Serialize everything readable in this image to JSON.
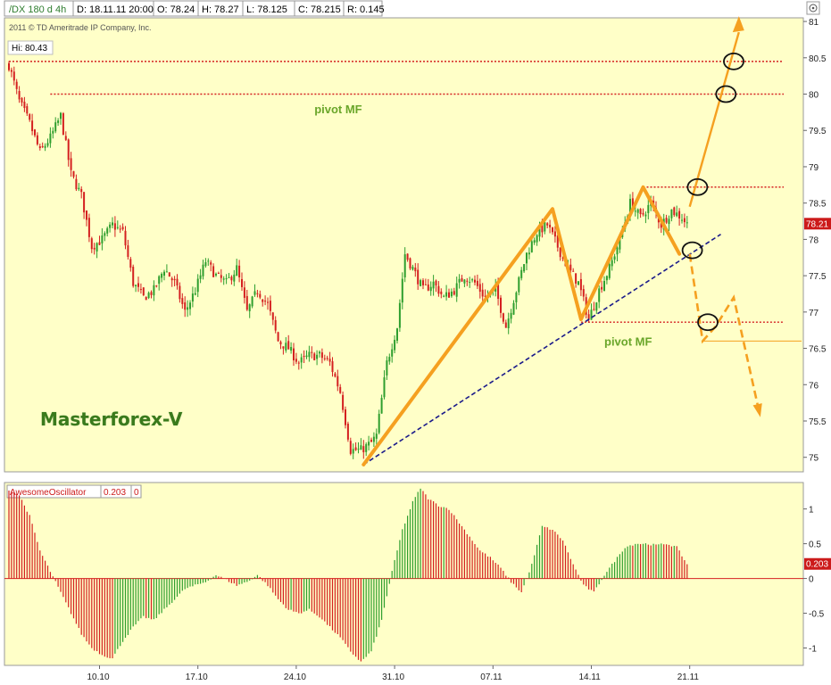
{
  "header": {
    "symbol": "/DX 180 d 4h",
    "date": "D: 18.11.11 20:00",
    "open": "O: 78.24",
    "high": "H: 78.27",
    "low": "L: 78.125",
    "close": "C: 78.215",
    "range": "R: 0.145",
    "copyright": "2011 © TD Ameritrade IP Company, Inc.",
    "hi_label": "Hi: 80.43"
  },
  "watermark": "Masterforex-V",
  "colors": {
    "background": "#ffffc8",
    "bull": "#2e9e2e",
    "bear": "#d42020",
    "arrow": "#f5a020",
    "trendline": "#1a1a8a",
    "pivot_line": "#d42020"
  },
  "chart_data": [
    {
      "type": "candlestick",
      "title": "",
      "y_ticks": [
        "81",
        "80.5",
        "80",
        "79.5",
        "79",
        "78.5",
        "78",
        "77.5",
        "77",
        "76.5",
        "76",
        "75.5",
        "75"
      ],
      "y_range": [
        74.8,
        81.05
      ],
      "scale": "linear",
      "price_tag": "78.21",
      "hi_value": 80.43,
      "close_path": [
        [
          0,
          80.4
        ],
        [
          4,
          79.9
        ],
        [
          8,
          79.6
        ],
        [
          12,
          79.2
        ],
        [
          16,
          79.4
        ],
        [
          20,
          79.7
        ],
        [
          24,
          78.9
        ],
        [
          28,
          78.6
        ],
        [
          32,
          77.9
        ],
        [
          36,
          78.0
        ],
        [
          40,
          78.2
        ],
        [
          44,
          78.1
        ],
        [
          48,
          77.4
        ],
        [
          52,
          77.2
        ],
        [
          56,
          77.3
        ],
        [
          60,
          77.6
        ],
        [
          64,
          77.4
        ],
        [
          68,
          77.0
        ],
        [
          72,
          77.3
        ],
        [
          76,
          77.7
        ],
        [
          80,
          77.5
        ],
        [
          84,
          77.4
        ],
        [
          88,
          77.6
        ],
        [
          92,
          77.0
        ],
        [
          96,
          77.3
        ],
        [
          100,
          77.1
        ],
        [
          104,
          76.6
        ],
        [
          108,
          76.5
        ],
        [
          112,
          76.3
        ],
        [
          116,
          76.4
        ],
        [
          120,
          76.4
        ],
        [
          124,
          76.3
        ],
        [
          128,
          75.9
        ],
        [
          132,
          75.1
        ],
        [
          136,
          75.1
        ],
        [
          140,
          75.2
        ],
        [
          142,
          75.3
        ],
        [
          146,
          76.3
        ],
        [
          150,
          76.8
        ],
        [
          153,
          77.8
        ],
        [
          156,
          77.6
        ],
        [
          160,
          77.3
        ],
        [
          164,
          77.4
        ],
        [
          168,
          77.2
        ],
        [
          172,
          77.3
        ],
        [
          176,
          77.5
        ],
        [
          180,
          77.4
        ],
        [
          184,
          77.2
        ],
        [
          188,
          77.3
        ],
        [
          192,
          76.8
        ],
        [
          196,
          77.3
        ],
        [
          200,
          77.8
        ],
        [
          204,
          78.1
        ],
        [
          208,
          78.2
        ],
        [
          212,
          77.9
        ],
        [
          216,
          77.6
        ],
        [
          220,
          77.4
        ],
        [
          224,
          76.9
        ],
        [
          228,
          77.3
        ],
        [
          232,
          77.6
        ],
        [
          236,
          78.0
        ],
        [
          240,
          78.5
        ],
        [
          244,
          78.3
        ],
        [
          248,
          78.5
        ],
        [
          252,
          78.2
        ],
        [
          256,
          78.4
        ],
        [
          260,
          78.3
        ],
        [
          262,
          78.21
        ]
      ],
      "x_ticks": [
        {
          "label": "10.10",
          "bar": 35
        },
        {
          "label": "17.10",
          "bar": 73
        },
        {
          "label": "24.10",
          "bar": 111
        },
        {
          "label": "31.10",
          "bar": 149
        },
        {
          "label": "07.11",
          "bar": 187
        },
        {
          "label": "14.11",
          "bar": 225
        },
        {
          "label": "21.11",
          "bar": 263
        }
      ],
      "pivot_lines": [
        {
          "from_bar": 0,
          "level": 80.45
        },
        {
          "from_bar": 16,
          "level": 80.0
        },
        {
          "from_bar": 245,
          "level": 78.72
        },
        {
          "from_bar": 221,
          "level": 76.86
        }
      ],
      "pivot_labels": [
        {
          "text": "pivot MF",
          "bar": 118,
          "level": 79.8
        },
        {
          "text": "pivot MF",
          "bar": 230,
          "level": 76.6
        }
      ],
      "trendline": [
        [
          137,
          74.9
        ],
        [
          275,
          78.07
        ]
      ],
      "zigzag": [
        [
          137,
          74.9
        ],
        [
          210,
          78.42
        ],
        [
          221,
          76.9
        ],
        [
          245,
          78.72
        ],
        [
          259,
          77.8
        ]
      ],
      "projection_up": [
        [
          263,
          78.45
        ],
        [
          282,
          81.0
        ]
      ],
      "projection_down": [
        [
          263,
          77.8
        ],
        [
          268,
          76.6
        ],
        [
          273,
          76.8
        ],
        [
          280,
          77.2
        ],
        [
          290,
          75.6
        ]
      ],
      "circles": [
        {
          "bar": 280,
          "level": 80.45
        },
        {
          "bar": 277,
          "level": 80.0
        },
        {
          "bar": 266,
          "level": 78.72
        },
        {
          "bar": 264,
          "level": 77.85
        },
        {
          "bar": 270,
          "level": 76.86
        }
      ]
    },
    {
      "type": "bar",
      "title": "AwesomeOscillator",
      "legend_value": "0.203",
      "legend_zero": "0",
      "value_tag": "0.203",
      "y_ticks": [
        "1",
        "0.5",
        "0",
        "-0.5",
        "-1"
      ],
      "y_range": [
        -1.25,
        1.38
      ],
      "values_path": [
        [
          0,
          1.28
        ],
        [
          4,
          1.2
        ],
        [
          8,
          0.9
        ],
        [
          12,
          0.4
        ],
        [
          16,
          0.1
        ],
        [
          20,
          -0.2
        ],
        [
          24,
          -0.5
        ],
        [
          28,
          -0.8
        ],
        [
          32,
          -1.0
        ],
        [
          36,
          -1.1
        ],
        [
          40,
          -1.15
        ],
        [
          44,
          -0.9
        ],
        [
          48,
          -0.7
        ],
        [
          52,
          -0.55
        ],
        [
          56,
          -0.6
        ],
        [
          60,
          -0.45
        ],
        [
          64,
          -0.3
        ],
        [
          68,
          -0.15
        ],
        [
          72,
          -0.1
        ],
        [
          76,
          -0.05
        ],
        [
          80,
          0.05
        ],
        [
          84,
          -0.02
        ],
        [
          88,
          -0.1
        ],
        [
          92,
          -0.05
        ],
        [
          96,
          0.05
        ],
        [
          100,
          -0.1
        ],
        [
          104,
          -0.3
        ],
        [
          108,
          -0.45
        ],
        [
          112,
          -0.5
        ],
        [
          116,
          -0.45
        ],
        [
          120,
          -0.55
        ],
        [
          124,
          -0.7
        ],
        [
          128,
          -0.85
        ],
        [
          132,
          -1.05
        ],
        [
          136,
          -1.2
        ],
        [
          140,
          -1.05
        ],
        [
          144,
          -0.6
        ],
        [
          148,
          0.1
        ],
        [
          152,
          0.7
        ],
        [
          156,
          1.1
        ],
        [
          159,
          1.3
        ],
        [
          162,
          1.15
        ],
        [
          166,
          1.05
        ],
        [
          170,
          1.0
        ],
        [
          174,
          0.8
        ],
        [
          178,
          0.6
        ],
        [
          182,
          0.4
        ],
        [
          186,
          0.3
        ],
        [
          190,
          0.15
        ],
        [
          194,
          -0.05
        ],
        [
          198,
          -0.2
        ],
        [
          202,
          0.2
        ],
        [
          206,
          0.75
        ],
        [
          210,
          0.7
        ],
        [
          214,
          0.55
        ],
        [
          218,
          0.2
        ],
        [
          222,
          -0.1
        ],
        [
          226,
          -0.2
        ],
        [
          230,
          0.05
        ],
        [
          234,
          0.25
        ],
        [
          238,
          0.45
        ],
        [
          242,
          0.5
        ],
        [
          246,
          0.5
        ],
        [
          250,
          0.48
        ],
        [
          254,
          0.5
        ],
        [
          258,
          0.45
        ],
        [
          262,
          0.203
        ]
      ]
    }
  ]
}
